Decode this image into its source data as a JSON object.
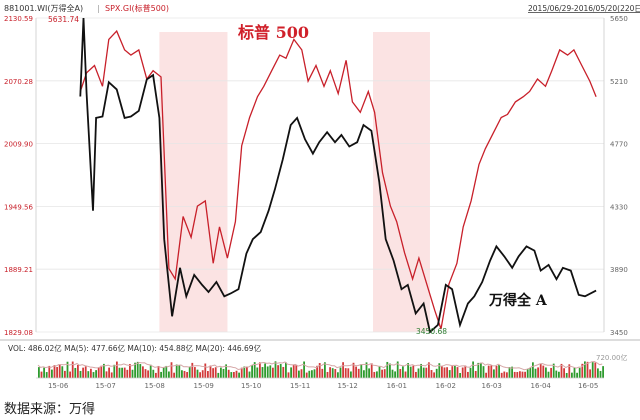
{
  "header": {
    "left_series": "881001.WI(万得全A)",
    "separator": "|",
    "right_series": "SPX.GI(标普500)",
    "date_range": "2015/06/29-2016/05/20(220日)"
  },
  "annotations": {
    "sp500_label": "标普 500",
    "wind_label": "万得全 A",
    "max_label": "5631.74",
    "min_label": "3450.68"
  },
  "volume_panel": {
    "text": "VOL: 486.02亿  MA(5): 477.66亿  MA(10): 454.88亿  MA(20): 446.69亿",
    "right_tick": "720.00亿"
  },
  "source_note": "数据来源：万得",
  "colors": {
    "sp500": "#c8202a",
    "wind": "#111111",
    "shade": "#fbe3e3",
    "vol_up": "#d23a3a",
    "vol_down": "#2e9b2e",
    "ma": "#d6a8a8"
  },
  "chart_data": {
    "type": "line",
    "x_ticks": [
      "15-06",
      "15-07",
      "15-08",
      "15-09",
      "15-10",
      "15-11",
      "15-12",
      "16-01",
      "16-02",
      "16-03",
      "16-04",
      "16-05"
    ],
    "left_axis": {
      "series": "SPX.GI",
      "ticks": [
        "2130.59",
        "2070.28",
        "2009.90",
        "1949.56",
        "1889.21",
        "1829.08"
      ],
      "ylim": [
        1829.08,
        2130.59
      ]
    },
    "right_axis": {
      "series": "881001.WI",
      "ticks": [
        "5650",
        "5210",
        "4770",
        "4330",
        "3890",
        "3450"
      ],
      "ylim": [
        3450,
        5650
      ]
    },
    "shaded_periods": [
      [
        "2015-08-18",
        "2015-09-30"
      ],
      [
        "2015-12-31",
        "2016-02-05"
      ]
    ],
    "series": [
      {
        "name": "标普 500",
        "axis": "left",
        "x": [
          "2015-06-29",
          "2015-07-03",
          "2015-07-08",
          "2015-07-13",
          "2015-07-17",
          "2015-07-22",
          "2015-07-27",
          "2015-07-31",
          "2015-08-05",
          "2015-08-10",
          "2015-08-14",
          "2015-08-19",
          "2015-08-24",
          "2015-08-28",
          "2015-09-02",
          "2015-09-07",
          "2015-09-11",
          "2015-09-16",
          "2015-09-21",
          "2015-09-25",
          "2015-09-30",
          "2015-10-05",
          "2015-10-09",
          "2015-10-14",
          "2015-10-19",
          "2015-10-23",
          "2015-10-28",
          "2015-11-02",
          "2015-11-06",
          "2015-11-11",
          "2015-11-16",
          "2015-11-20",
          "2015-11-25",
          "2015-11-30",
          "2015-12-04",
          "2015-12-09",
          "2015-12-14",
          "2015-12-18",
          "2015-12-23",
          "2015-12-28",
          "2016-01-01",
          "2016-01-06",
          "2016-01-11",
          "2016-01-15",
          "2016-01-20",
          "2016-01-25",
          "2016-01-29",
          "2016-02-03",
          "2016-02-08",
          "2016-02-12",
          "2016-02-17",
          "2016-02-22",
          "2016-02-26",
          "2016-03-02",
          "2016-03-07",
          "2016-03-11",
          "2016-03-16",
          "2016-03-21",
          "2016-03-25",
          "2016-03-30",
          "2016-04-04",
          "2016-04-08",
          "2016-04-13",
          "2016-04-18",
          "2016-04-22",
          "2016-04-27",
          "2016-05-02",
          "2016-05-06",
          "2016-05-11",
          "2016-05-16",
          "2016-05-20"
        ],
        "values": [
          2060,
          2078,
          2085,
          2065,
          2110,
          2118,
          2100,
          2095,
          2100,
          2072,
          2080,
          2074,
          1890,
          1880,
          1940,
          1920,
          1950,
          1955,
          1895,
          1930,
          1900,
          1935,
          2008,
          2035,
          2055,
          2065,
          2080,
          2095,
          2092,
          2110,
          2100,
          2070,
          2085,
          2065,
          2080,
          2058,
          2090,
          2050,
          2040,
          2060,
          2040,
          1982,
          1950,
          1935,
          1905,
          1880,
          1900,
          1875,
          1850,
          1832,
          1875,
          1895,
          1930,
          1955,
          1990,
          2005,
          2020,
          2035,
          2038,
          2050,
          2055,
          2060,
          2072,
          2065,
          2080,
          2100,
          2095,
          2100,
          2085,
          2070,
          2055
        ]
      },
      {
        "name": "万得全 A",
        "axis": "right",
        "x": [
          "2015-06-29",
          "2015-07-01",
          "2015-07-03",
          "2015-07-07",
          "2015-07-09",
          "2015-07-13",
          "2015-07-17",
          "2015-07-22",
          "2015-07-27",
          "2015-07-31",
          "2015-08-05",
          "2015-08-10",
          "2015-08-14",
          "2015-08-18",
          "2015-08-21",
          "2015-08-26",
          "2015-08-31",
          "2015-09-04",
          "2015-09-09",
          "2015-09-14",
          "2015-09-18",
          "2015-09-23",
          "2015-09-28",
          "2015-10-02",
          "2015-10-07",
          "2015-10-12",
          "2015-10-16",
          "2015-10-21",
          "2015-10-26",
          "2015-10-30",
          "2015-11-04",
          "2015-11-09",
          "2015-11-13",
          "2015-11-18",
          "2015-11-23",
          "2015-11-27",
          "2015-12-02",
          "2015-12-07",
          "2015-12-11",
          "2015-12-16",
          "2015-12-21",
          "2015-12-25",
          "2015-12-30",
          "2016-01-04",
          "2016-01-08",
          "2016-01-13",
          "2016-01-18",
          "2016-01-22",
          "2016-01-27",
          "2016-02-01",
          "2016-02-05",
          "2016-02-10",
          "2016-02-15",
          "2016-02-19",
          "2016-02-24",
          "2016-02-29",
          "2016-03-04",
          "2016-03-09",
          "2016-03-14",
          "2016-03-18",
          "2016-03-23",
          "2016-03-28",
          "2016-04-01",
          "2016-04-06",
          "2016-04-11",
          "2016-04-15",
          "2016-04-20",
          "2016-04-25",
          "2016-04-29",
          "2016-05-04",
          "2016-05-09",
          "2016-05-13",
          "2016-05-20"
        ],
        "values": [
          5100,
          5650,
          5120,
          4300,
          4950,
          4960,
          5200,
          5150,
          4950,
          4960,
          5000,
          5220,
          5250,
          4950,
          4100,
          3560,
          3900,
          3700,
          3850,
          3780,
          3730,
          3800,
          3700,
          3720,
          3750,
          4000,
          4100,
          4150,
          4300,
          4450,
          4660,
          4900,
          4950,
          4800,
          4700,
          4780,
          4850,
          4780,
          4830,
          4750,
          4780,
          4900,
          4860,
          4500,
          4100,
          3950,
          3750,
          3780,
          3580,
          3650,
          3450,
          3500,
          3780,
          3750,
          3500,
          3650,
          3700,
          3800,
          3950,
          4050,
          3980,
          3900,
          3980,
          4050,
          4020,
          3880,
          3920,
          3820,
          3900,
          3880,
          3710,
          3700,
          3740
        ]
      }
    ],
    "volume": {
      "unit": "亿",
      "latest": 486.02,
      "ma5": 477.66,
      "ma10": 454.88,
      "ma20": 446.69,
      "max_tick": 720.0
    }
  }
}
